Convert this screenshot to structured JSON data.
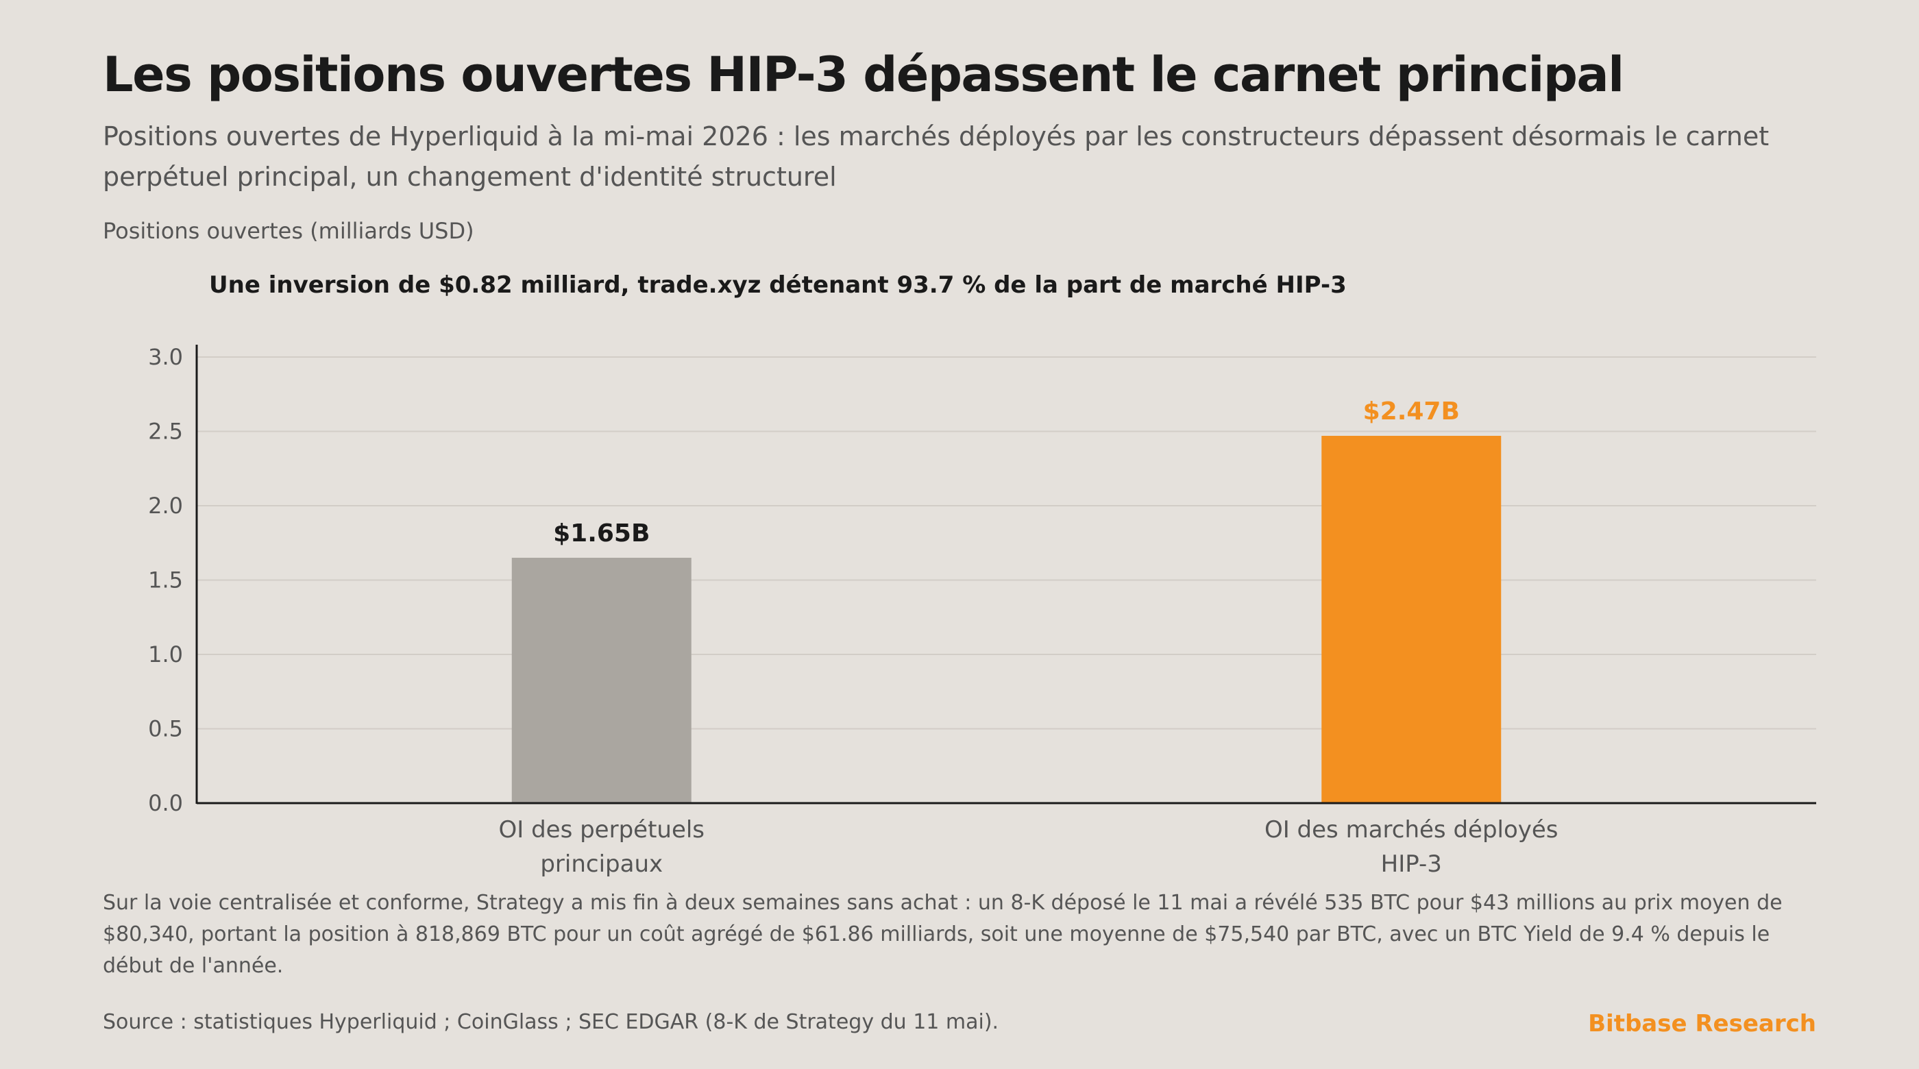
{
  "header": {
    "title": "Les positions ouvertes HIP-3 dépassent le carnet principal",
    "subtitle": "Positions ouvertes de Hyperliquid à la mi-mai 2026 : les marchés déployés par les constructeurs dépassent désormais le carnet perpétuel principal, un changement d'identité structurel"
  },
  "chart_data": {
    "type": "bar",
    "title": "Les positions ouvertes HIP-3 dépassent le carnet principal",
    "ylabel": "Positions ouvertes (milliards USD)",
    "xlabel": "",
    "annotation": "Une inversion de $0.82 milliard, trade.xyz détenant 93.7 % de la part de marché HIP-3",
    "categories": [
      [
        "OI des perpétuels",
        "principaux"
      ],
      [
        "OI des marchés déployés",
        "HIP-3"
      ]
    ],
    "values": [
      1.65,
      2.47
    ],
    "value_labels": [
      "$1.65B",
      "$2.47B"
    ],
    "bar_colors": [
      "#aaa6a0",
      "#f39020"
    ],
    "label_colors": [
      "#1a1a1a",
      "#f39020"
    ],
    "ylim": [
      0,
      3.0
    ],
    "yticks": [
      "0.0",
      "0.5",
      "1.0",
      "1.5",
      "2.0",
      "2.5",
      "3.0"
    ],
    "grid": true,
    "legend": "none"
  },
  "footer": {
    "caption": "Sur la voie centralisée et conforme, Strategy a mis fin à deux semaines sans achat : un 8-K déposé le 11 mai a révélé 535 BTC pour $43 millions au prix moyen de $80,340, portant la position à 818,869 BTC pour un coût agrégé de $61.86 milliards, soit une moyenne de $75,540 par BTC, avec un BTC Yield de 9.4 % depuis le début de l'année.",
    "source": "Source : statistiques Hyperliquid ; CoinGlass ; SEC EDGAR (8-K de Strategy du 11 mai).",
    "brand": "Bitbase Research"
  },
  "colors": {
    "background": "#e5e1dc",
    "accent": "#f39020",
    "muted_bar": "#aaa6a0",
    "grid": "#d2cdc7",
    "text": "#1a1a1a",
    "muted_text": "#555555"
  }
}
